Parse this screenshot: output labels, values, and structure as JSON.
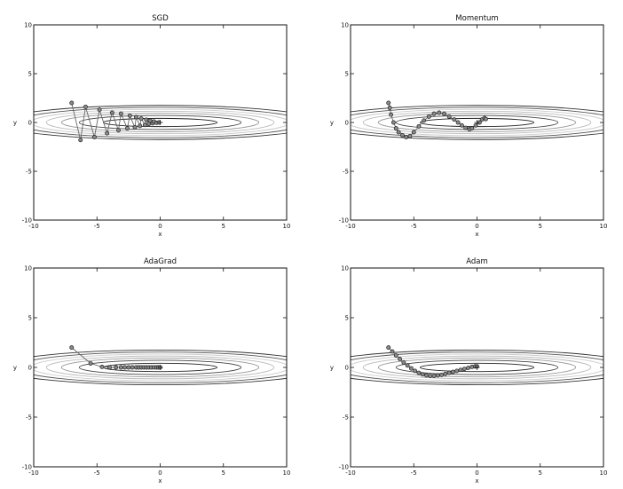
{
  "chart_data": [
    {
      "type": "line",
      "title": "SGD",
      "xlabel": "x",
      "ylabel": "y",
      "xlim": [
        -10,
        10
      ],
      "ylim": [
        -10,
        10
      ],
      "xticks": [
        "-10",
        "-5",
        "0",
        "5",
        "10"
      ],
      "yticks": [
        "10",
        "5",
        "0",
        "-5",
        "-10"
      ],
      "grid": false,
      "minimum": [
        0,
        0
      ],
      "contour_levels": [
        {
          "rx": 4.5,
          "ry": 0.42,
          "color": "#222222"
        },
        {
          "rx": 6.4,
          "ry": 0.72,
          "color": "#444444"
        },
        {
          "rx": 7.8,
          "ry": 0.95,
          "color": "#999999"
        },
        {
          "rx": 9.0,
          "ry": 1.15,
          "color": "#bbbbbb"
        },
        {
          "rx": 10.2,
          "ry": 1.35,
          "color": "#cccccc"
        },
        {
          "rx": 11.4,
          "ry": 1.55,
          "color": "#555555"
        },
        {
          "rx": 12.8,
          "ry": 1.75,
          "color": "#333333"
        }
      ],
      "series": [
        {
          "x": [
            -7.0,
            -6.3,
            -5.9,
            -5.2,
            -4.8,
            -4.2,
            -3.8,
            -3.3,
            -3.1,
            -2.6,
            -2.4,
            -2.0,
            -1.9,
            -1.6,
            -1.5,
            -1.2,
            -1.1,
            -0.9,
            -0.8,
            -0.6,
            -0.5,
            -0.3,
            -0.1
          ],
          "y": [
            2.0,
            -1.8,
            1.6,
            -1.5,
            1.3,
            -1.1,
            1.0,
            -0.8,
            0.9,
            -0.6,
            0.7,
            -0.5,
            0.55,
            -0.35,
            0.4,
            -0.25,
            0.28,
            -0.15,
            0.18,
            -0.08,
            0.1,
            -0.04,
            0.0
          ]
        }
      ]
    },
    {
      "type": "line",
      "title": "Momentum",
      "xlabel": "x",
      "ylabel": "y",
      "xlim": [
        -10,
        10
      ],
      "ylim": [
        -10,
        10
      ],
      "xticks": [
        "-10",
        "-5",
        "0",
        "5",
        "10"
      ],
      "yticks": [
        "10",
        "5",
        "0",
        "-5",
        "-10"
      ],
      "grid": false,
      "minimum": [
        0,
        0
      ],
      "contour_levels": [
        {
          "rx": 4.5,
          "ry": 0.42,
          "color": "#222222"
        },
        {
          "rx": 6.4,
          "ry": 0.72,
          "color": "#444444"
        },
        {
          "rx": 7.8,
          "ry": 0.95,
          "color": "#999999"
        },
        {
          "rx": 9.0,
          "ry": 1.15,
          "color": "#bbbbbb"
        },
        {
          "rx": 10.2,
          "ry": 1.35,
          "color": "#cccccc"
        },
        {
          "rx": 11.4,
          "ry": 1.55,
          "color": "#555555"
        },
        {
          "rx": 12.8,
          "ry": 1.75,
          "color": "#333333"
        }
      ],
      "series": [
        {
          "x": [
            -7.0,
            -6.9,
            -6.8,
            -6.6,
            -6.4,
            -6.2,
            -5.9,
            -5.6,
            -5.3,
            -5.0,
            -4.6,
            -4.2,
            -3.8,
            -3.4,
            -3.0,
            -2.6,
            -2.2,
            -1.8,
            -1.5,
            -1.2,
            -0.9,
            -0.6,
            -0.4,
            -0.1,
            0.2,
            0.4,
            0.6,
            0.7
          ],
          "y": [
            2.0,
            1.5,
            0.8,
            0.0,
            -0.6,
            -1.0,
            -1.3,
            -1.5,
            -1.4,
            -1.0,
            -0.4,
            0.2,
            0.6,
            0.9,
            1.0,
            0.9,
            0.6,
            0.3,
            0.0,
            -0.3,
            -0.55,
            -0.7,
            -0.6,
            -0.3,
            0.0,
            0.3,
            0.45,
            0.35
          ]
        }
      ]
    },
    {
      "type": "line",
      "title": "AdaGrad",
      "xlabel": "x",
      "ylabel": "y",
      "xlim": [
        -10,
        10
      ],
      "ylim": [
        -10,
        10
      ],
      "xticks": [
        "-10",
        "-5",
        "0",
        "5",
        "10"
      ],
      "yticks": [
        "10",
        "5",
        "0",
        "-5",
        "-10"
      ],
      "grid": false,
      "minimum": [
        0,
        0
      ],
      "contour_levels": [
        {
          "rx": 4.5,
          "ry": 0.42,
          "color": "#222222"
        },
        {
          "rx": 6.4,
          "ry": 0.72,
          "color": "#444444"
        },
        {
          "rx": 7.8,
          "ry": 0.95,
          "color": "#999999"
        },
        {
          "rx": 9.0,
          "ry": 1.15,
          "color": "#bbbbbb"
        },
        {
          "rx": 10.2,
          "ry": 1.35,
          "color": "#cccccc"
        },
        {
          "rx": 11.4,
          "ry": 1.55,
          "color": "#555555"
        },
        {
          "rx": 12.8,
          "ry": 1.75,
          "color": "#333333"
        }
      ],
      "series": [
        {
          "x": [
            -7.0,
            -5.5,
            -4.6,
            -4.0,
            -3.5,
            -3.1,
            -2.8,
            -2.5,
            -2.2,
            -1.9,
            -1.7,
            -1.5,
            -1.3,
            -1.1,
            -0.9,
            -0.7,
            -0.5,
            -0.3,
            -0.15,
            0.0
          ],
          "y": [
            2.0,
            0.4,
            0.05,
            0.0,
            0.0,
            0.0,
            0.0,
            0.0,
            0.0,
            0.0,
            0.0,
            0.0,
            0.0,
            0.0,
            0.0,
            0.0,
            0.0,
            0.0,
            0.0,
            0.0
          ]
        }
      ]
    },
    {
      "type": "line",
      "title": "Adam",
      "xlabel": "x",
      "ylabel": "y",
      "xlim": [
        -10,
        10
      ],
      "ylim": [
        -10,
        10
      ],
      "xticks": [
        "-10",
        "-5",
        "0",
        "5",
        "10"
      ],
      "yticks": [
        "10",
        "5",
        "0",
        "-5",
        "-10"
      ],
      "grid": false,
      "minimum": [
        0,
        0
      ],
      "contour_levels": [
        {
          "rx": 4.5,
          "ry": 0.42,
          "color": "#222222"
        },
        {
          "rx": 6.4,
          "ry": 0.72,
          "color": "#444444"
        },
        {
          "rx": 7.8,
          "ry": 0.95,
          "color": "#999999"
        },
        {
          "rx": 9.0,
          "ry": 1.15,
          "color": "#bbbbbb"
        },
        {
          "rx": 10.2,
          "ry": 1.35,
          "color": "#cccccc"
        },
        {
          "rx": 11.4,
          "ry": 1.55,
          "color": "#555555"
        },
        {
          "rx": 12.8,
          "ry": 1.75,
          "color": "#333333"
        }
      ],
      "series": [
        {
          "x": [
            -7.0,
            -6.7,
            -6.4,
            -6.1,
            -5.8,
            -5.5,
            -5.2,
            -4.9,
            -4.6,
            -4.3,
            -4.0,
            -3.7,
            -3.4,
            -3.1,
            -2.8,
            -2.5,
            -2.2,
            -1.9,
            -1.6,
            -1.3,
            -1.0,
            -0.7,
            -0.4,
            -0.15,
            0.0
          ],
          "y": [
            2.0,
            1.6,
            1.2,
            0.85,
            0.5,
            0.2,
            -0.1,
            -0.35,
            -0.55,
            -0.7,
            -0.8,
            -0.85,
            -0.85,
            -0.8,
            -0.75,
            -0.65,
            -0.55,
            -0.45,
            -0.35,
            -0.25,
            -0.15,
            -0.05,
            0.05,
            0.1,
            0.1
          ]
        }
      ]
    }
  ]
}
